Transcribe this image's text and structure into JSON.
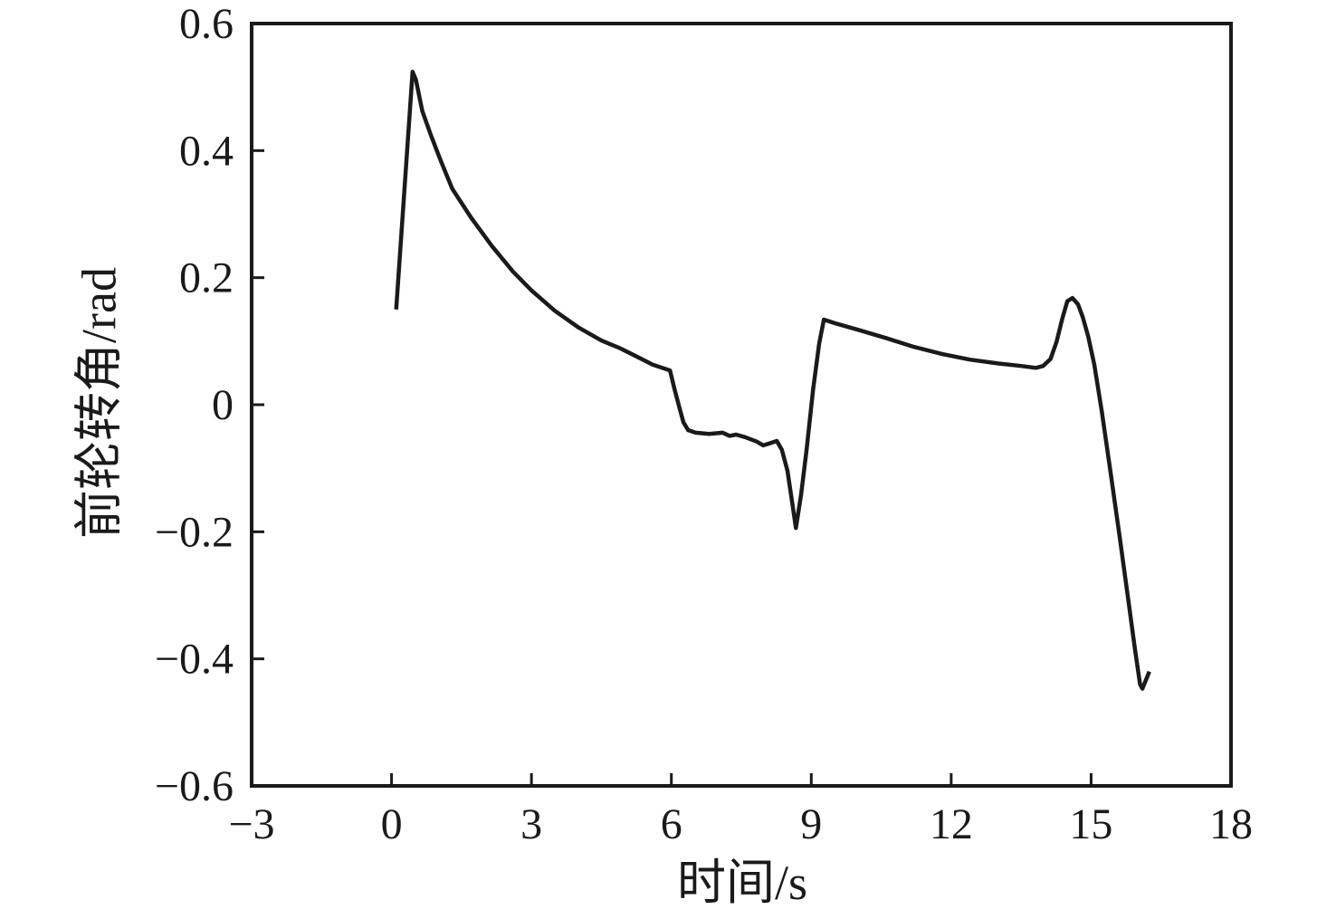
{
  "chart_data": {
    "type": "line",
    "title": "",
    "xlabel": "时间/s",
    "ylabel": "前轮转角/rad",
    "xlim": [
      -3,
      18
    ],
    "ylim": [
      -0.6,
      0.6
    ],
    "xticks": [
      -3,
      0,
      3,
      6,
      9,
      12,
      15,
      18
    ],
    "xtick_labels": [
      "−3",
      "0",
      "3",
      "6",
      "9",
      "12",
      "15",
      "18"
    ],
    "yticks": [
      0.6,
      0.4,
      0.2,
      0,
      -0.2,
      -0.4,
      -0.6
    ],
    "ytick_labels": [
      "0.6",
      "0.4",
      "0.2",
      "0",
      "−0.2",
      "−0.4",
      "−0.6"
    ],
    "grid": false,
    "legend": null,
    "axis_color": "#1a1a1a",
    "line_color": "#1a1a1a",
    "background": "#ffffff",
    "series": [
      {
        "name": "前轮转角",
        "points": [
          [
            0.1,
            0.15
          ],
          [
            0.45,
            0.524
          ],
          [
            0.52,
            0.512
          ],
          [
            0.66,
            0.462
          ],
          [
            0.85,
            0.423
          ],
          [
            1.05,
            0.385
          ],
          [
            1.3,
            0.34
          ],
          [
            1.7,
            0.295
          ],
          [
            2.15,
            0.25
          ],
          [
            2.6,
            0.21
          ],
          [
            3.0,
            0.18
          ],
          [
            3.5,
            0.148
          ],
          [
            4.0,
            0.122
          ],
          [
            4.5,
            0.101
          ],
          [
            4.9,
            0.089
          ],
          [
            5.2,
            0.078
          ],
          [
            5.6,
            0.063
          ],
          [
            5.97,
            0.054
          ],
          [
            6.07,
            0.024
          ],
          [
            6.17,
            -0.004
          ],
          [
            6.26,
            -0.028
          ],
          [
            6.36,
            -0.04
          ],
          [
            6.52,
            -0.044
          ],
          [
            6.81,
            -0.046
          ],
          [
            7.1,
            -0.044
          ],
          [
            7.25,
            -0.049
          ],
          [
            7.39,
            -0.047
          ],
          [
            7.58,
            -0.051
          ],
          [
            7.83,
            -0.058
          ],
          [
            7.97,
            -0.064
          ],
          [
            8.1,
            -0.061
          ],
          [
            8.26,
            -0.057
          ],
          [
            8.37,
            -0.071
          ],
          [
            8.49,
            -0.104
          ],
          [
            8.59,
            -0.154
          ],
          [
            8.67,
            -0.194
          ],
          [
            8.78,
            -0.142
          ],
          [
            8.9,
            -0.071
          ],
          [
            9.04,
            0.024
          ],
          [
            9.17,
            0.096
          ],
          [
            9.27,
            0.134
          ],
          [
            9.52,
            0.128
          ],
          [
            10.0,
            0.118
          ],
          [
            10.6,
            0.105
          ],
          [
            11.2,
            0.091
          ],
          [
            11.8,
            0.08
          ],
          [
            12.4,
            0.071
          ],
          [
            13.0,
            0.065
          ],
          [
            13.5,
            0.061
          ],
          [
            13.82,
            0.058
          ],
          [
            13.97,
            0.061
          ],
          [
            14.13,
            0.072
          ],
          [
            14.26,
            0.099
          ],
          [
            14.38,
            0.135
          ],
          [
            14.49,
            0.163
          ],
          [
            14.6,
            0.168
          ],
          [
            14.72,
            0.158
          ],
          [
            14.82,
            0.138
          ],
          [
            14.94,
            0.107
          ],
          [
            15.07,
            0.063
          ],
          [
            15.23,
            -0.011
          ],
          [
            15.42,
            -0.108
          ],
          [
            15.61,
            -0.207
          ],
          [
            15.8,
            -0.308
          ],
          [
            15.94,
            -0.385
          ],
          [
            16.05,
            -0.44
          ],
          [
            16.1,
            -0.447
          ],
          [
            16.25,
            -0.42
          ]
        ]
      }
    ]
  }
}
